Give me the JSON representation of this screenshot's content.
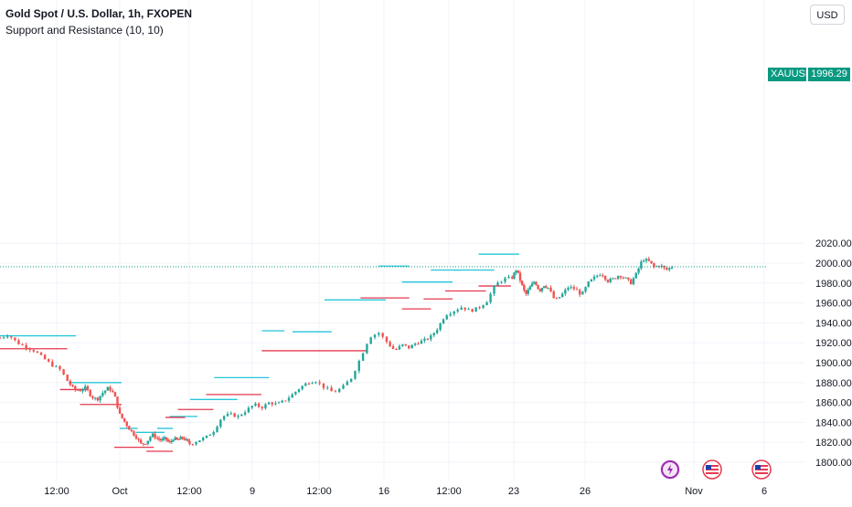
{
  "header": {
    "title": "Gold Spot / U.S. Dollar, 1h, FXOPEN",
    "indicator": "Support and Resistance (10, 10)"
  },
  "currency_label": "USD",
  "current_price": {
    "symbol": "XAUUSD",
    "value": "1996.29",
    "price": 1996.29
  },
  "colors": {
    "up": "#26a69a",
    "down": "#ef5350",
    "resistance": "#26c6da",
    "support": "#e53950",
    "price_line": "#089981"
  },
  "chart_data": {
    "type": "candlestick",
    "title": "Gold Spot / U.S. Dollar, 1h, FXOPEN",
    "ylim": [
      1795,
      2022
    ],
    "y_ticks": [
      1800,
      1820,
      1840,
      1860,
      1880,
      1900,
      1920,
      1940,
      1960,
      1980,
      2000,
      2020
    ],
    "y_tick_labels": [
      "1800.00",
      "1820.00",
      "1840.00",
      "1860.00",
      "1880.00",
      "1900.00",
      "1920.00",
      "1940.00",
      "1960.00",
      "1980.00",
      "2000.00",
      "2020.00"
    ],
    "x_labels": [
      "12:00",
      "Oct",
      "12:00",
      "9",
      "12:00",
      "16",
      "12:00",
      "23",
      "26",
      "Nov",
      "6"
    ],
    "x_label_index": [
      0,
      1,
      2,
      3,
      4,
      5,
      6,
      7,
      8,
      9,
      10
    ],
    "price_path": [
      [
        0,
        1925
      ],
      [
        1,
        1928
      ],
      [
        2,
        1920
      ],
      [
        3,
        1916
      ],
      [
        4,
        1912
      ],
      [
        5,
        1905
      ],
      [
        6,
        1898
      ],
      [
        7,
        1893
      ],
      [
        8,
        1880
      ],
      [
        9,
        1873
      ],
      [
        10,
        1872
      ],
      [
        11,
        1875
      ],
      [
        12,
        1866
      ],
      [
        13,
        1863
      ],
      [
        14,
        1870
      ],
      [
        15,
        1875
      ],
      [
        16,
        1868
      ],
      [
        17,
        1848
      ],
      [
        18,
        1840
      ],
      [
        19,
        1832
      ],
      [
        20,
        1826
      ],
      [
        21,
        1818
      ],
      [
        22,
        1820
      ],
      [
        23,
        1828
      ],
      [
        24,
        1824
      ],
      [
        25,
        1822
      ],
      [
        26,
        1824
      ],
      [
        27,
        1819
      ],
      [
        28,
        1824
      ],
      [
        29,
        1822
      ],
      [
        30,
        1825
      ],
      [
        31,
        1822
      ],
      [
        32,
        1818
      ],
      [
        33,
        1822
      ],
      [
        34,
        1825
      ],
      [
        35,
        1832
      ],
      [
        36,
        1846
      ],
      [
        37,
        1848
      ],
      [
        38,
        1846
      ],
      [
        39,
        1852
      ],
      [
        40,
        1858
      ],
      [
        41,
        1855
      ],
      [
        42,
        1860
      ],
      [
        43,
        1858
      ],
      [
        44,
        1862
      ],
      [
        45,
        1868
      ],
      [
        46,
        1875
      ],
      [
        47,
        1880
      ],
      [
        48,
        1882
      ],
      [
        49,
        1875
      ],
      [
        50,
        1870
      ],
      [
        51,
        1875
      ],
      [
        52,
        1885
      ],
      [
        53,
        1905
      ],
      [
        54,
        1926
      ],
      [
        55,
        1930
      ],
      [
        56,
        1920
      ],
      [
        57,
        1912
      ],
      [
        58,
        1918
      ],
      [
        59,
        1915
      ],
      [
        60,
        1920
      ],
      [
        61,
        1922
      ],
      [
        62,
        1926
      ],
      [
        63,
        1935
      ],
      [
        64,
        1948
      ],
      [
        65,
        1952
      ],
      [
        66,
        1956
      ],
      [
        67,
        1952
      ],
      [
        68,
        1955
      ],
      [
        69,
        1962
      ],
      [
        70,
        1978
      ],
      [
        71,
        1984
      ],
      [
        72,
        1985
      ],
      [
        73,
        1994
      ],
      [
        74,
        1980
      ],
      [
        75,
        1968
      ],
      [
        76,
        1976
      ],
      [
        77,
        1982
      ],
      [
        78,
        1972
      ],
      [
        79,
        1978
      ],
      [
        80,
        1975
      ],
      [
        81,
        1962
      ],
      [
        82,
        1968
      ],
      [
        83,
        1976
      ],
      [
        84,
        1974
      ],
      [
        85,
        1968
      ],
      [
        86,
        1980
      ],
      [
        87,
        1986
      ],
      [
        88,
        1990
      ],
      [
        89,
        1982
      ],
      [
        90,
        1984
      ],
      [
        91,
        1988
      ],
      [
        92,
        1985
      ],
      [
        93,
        1980
      ],
      [
        94,
        1990
      ],
      [
        95,
        2004
      ],
      [
        96,
        2002
      ],
      [
        97,
        1996
      ],
      [
        98,
        1998
      ],
      [
        99,
        1993
      ],
      [
        100,
        1996.29
      ]
    ],
    "resistance_levels": [
      {
        "start": 0,
        "end": 8,
        "value": 1927
      },
      {
        "start": 8,
        "end": 16,
        "value": 1880
      },
      {
        "start": 17,
        "end": 19,
        "value": 1834
      },
      {
        "start": 20,
        "end": 24,
        "value": 1830
      },
      {
        "start": 24,
        "end": 26,
        "value": 1834
      },
      {
        "start": 27,
        "end": 32,
        "value": 1846
      },
      {
        "start": 32,
        "end": 37,
        "value": 1863
      },
      {
        "start": 35,
        "end": 41,
        "value": 1885
      },
      {
        "start": 41,
        "end": 43,
        "value": 1932
      },
      {
        "start": 45,
        "end": 49,
        "value": 1931
      },
      {
        "start": 49,
        "end": 55,
        "value": 1963
      },
      {
        "start": 55,
        "end": 58,
        "value": 1997
      },
      {
        "start": 58,
        "end": 64,
        "value": 1981
      },
      {
        "start": 62,
        "end": 65,
        "value": 1993
      },
      {
        "start": 65,
        "end": 69,
        "value": 1993
      },
      {
        "start": 68,
        "end": 72,
        "value": 2009
      }
    ],
    "support_levels": [
      {
        "start": 0,
        "end": 7,
        "value": 1914
      },
      {
        "start": 7,
        "end": 10,
        "value": 1873
      },
      {
        "start": 10,
        "end": 16,
        "value": 1858
      },
      {
        "start": 16,
        "end": 22,
        "value": 1815
      },
      {
        "start": 22,
        "end": 26,
        "value": 1811
      },
      {
        "start": 26,
        "end": 29,
        "value": 1845
      },
      {
        "start": 29,
        "end": 34,
        "value": 1853
      },
      {
        "start": 34,
        "end": 40,
        "value": 1868
      },
      {
        "start": 41,
        "end": 53,
        "value": 1912
      },
      {
        "start": 53,
        "end": 58,
        "value": 1965
      },
      {
        "start": 58,
        "end": 61,
        "value": 1954
      },
      {
        "start": 61,
        "end": 64,
        "value": 1964
      },
      {
        "start": 64,
        "end": 68,
        "value": 1972
      },
      {
        "start": 68,
        "end": 71,
        "value": 1977
      }
    ]
  },
  "event_badges": [
    {
      "name": "earnings-flash-icon",
      "color": "#9c27b0"
    },
    {
      "name": "us-flag-icon",
      "color": "#e53950"
    },
    {
      "name": "us-flag-icon",
      "color": "#e53950"
    }
  ]
}
